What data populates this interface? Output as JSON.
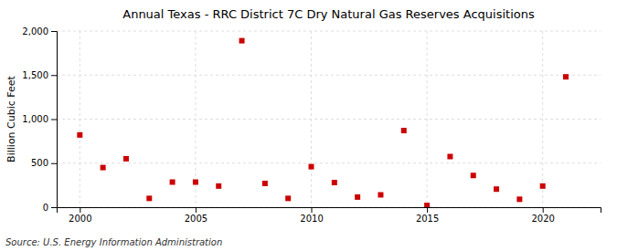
{
  "chart_data": {
    "type": "scatter",
    "title": "Annual Texas - RRC District 7C Dry Natural Gas Reserves Acquisitions",
    "ylabel": "Billion Cubic Feet",
    "source": "Source: U.S. Energy Information Administration",
    "x": [
      2000,
      2001,
      2002,
      2003,
      2004,
      2005,
      2006,
      2007,
      2008,
      2009,
      2010,
      2011,
      2012,
      2013,
      2014,
      2015,
      2016,
      2017,
      2018,
      2019,
      2020,
      2021
    ],
    "values": [
      820,
      450,
      550,
      100,
      285,
      285,
      240,
      1890,
      270,
      100,
      460,
      280,
      115,
      140,
      870,
      20,
      575,
      360,
      205,
      90,
      240,
      1480
    ],
    "color": "#cc0000",
    "marker": "square",
    "xlim": [
      1999.0,
      2022.5
    ],
    "xticks": [
      2000,
      2005,
      2010,
      2015,
      2020
    ],
    "ylim": [
      0,
      2000
    ],
    "yticks": [
      0,
      500,
      {
        "value": 1000,
        "label": "1,000"
      },
      {
        "value": 1500,
        "label": "1,500"
      },
      {
        "value": 2000,
        "label": "2,000"
      }
    ],
    "grid": true
  }
}
